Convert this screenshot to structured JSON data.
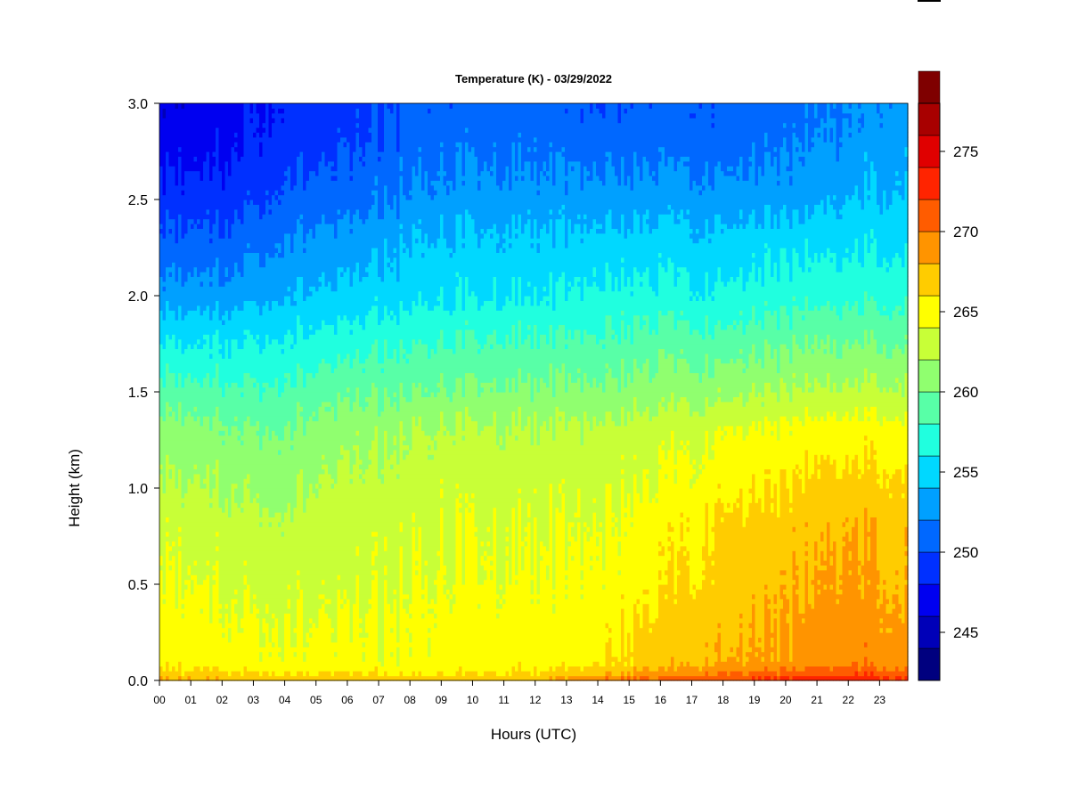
{
  "chart_data": {
    "type": "heatmap",
    "title": "Temperature (K) - 03/29/2022",
    "xlabel": "Hours (UTC)",
    "ylabel": "Height (km)",
    "x_ticks": [
      "00",
      "01",
      "02",
      "03",
      "04",
      "05",
      "06",
      "07",
      "08",
      "09",
      "10",
      "11",
      "12",
      "13",
      "14",
      "15",
      "16",
      "17",
      "18",
      "19",
      "20",
      "21",
      "22",
      "23"
    ],
    "xlim": [
      0,
      23.9
    ],
    "y_ticks": [
      "0.0",
      "0.5",
      "1.0",
      "1.5",
      "2.0",
      "2.5",
      "3.0"
    ],
    "ylim": [
      0,
      3.0
    ],
    "colorbar": {
      "ticks": [
        "245",
        "250",
        "255",
        "260",
        "265",
        "270",
        "275"
      ],
      "range": [
        242,
        278
      ],
      "step": 2,
      "colors": [
        "#00007f",
        "#0000b8",
        "#0000f0",
        "#0030ff",
        "#0068ff",
        "#00a0ff",
        "#00d8ff",
        "#20ffdf",
        "#58ffa7",
        "#90ff6f",
        "#c8ff37",
        "#ffff00",
        "#ffcc00",
        "#ff9400",
        "#ff5c00",
        "#ff2400",
        "#e00000",
        "#a80000",
        "#7f0000"
      ]
    },
    "heights_km": [
      0.0,
      0.05,
      0.1,
      0.3,
      0.5,
      0.8,
      1.0,
      1.3,
      1.5,
      1.8,
      2.0,
      2.3,
      2.5,
      2.8,
      3.0
    ],
    "profiles": [
      {
        "hour": 0,
        "temp_K": [
          268.5,
          266.5,
          265.5,
          265.0,
          264.5,
          263.5,
          262.5,
          261.0,
          259.0,
          255.5,
          253.0,
          250.5,
          249.0,
          247.0,
          246.5
        ]
      },
      {
        "hour": 2,
        "temp_K": [
          268.0,
          266.0,
          265.0,
          264.5,
          263.8,
          263.0,
          262.0,
          260.5,
          258.5,
          255.5,
          253.0,
          250.5,
          249.0,
          247.5,
          247.0
        ]
      },
      {
        "hour": 4,
        "temp_K": [
          267.5,
          265.5,
          264.5,
          264.0,
          263.5,
          262.5,
          261.5,
          260.0,
          258.5,
          256.0,
          254.0,
          252.0,
          250.5,
          249.0,
          248.5
        ]
      },
      {
        "hour": 6,
        "temp_K": [
          267.5,
          265.5,
          264.5,
          264.0,
          263.3,
          263.0,
          262.5,
          261.0,
          259.5,
          256.5,
          254.5,
          252.5,
          251.0,
          249.5,
          249.0
        ]
      },
      {
        "hour": 8,
        "temp_K": [
          267.5,
          265.5,
          264.5,
          264.5,
          264.0,
          263.5,
          263.0,
          262.0,
          260.0,
          257.5,
          255.5,
          254.0,
          252.5,
          251.0,
          250.5
        ]
      },
      {
        "hour": 10,
        "temp_K": [
          267.5,
          265.5,
          265.0,
          265.0,
          264.5,
          264.0,
          263.5,
          262.5,
          260.5,
          258.0,
          256.0,
          254.5,
          253.0,
          251.5,
          251.0
        ]
      },
      {
        "hour": 12,
        "temp_K": [
          268.0,
          266.0,
          265.0,
          265.0,
          264.5,
          264.0,
          263.5,
          262.5,
          260.5,
          258.0,
          256.0,
          254.5,
          253.0,
          251.5,
          251.0
        ]
      },
      {
        "hour": 14,
        "temp_K": [
          270.0,
          267.0,
          265.5,
          265.0,
          264.5,
          264.0,
          263.5,
          262.5,
          260.5,
          258.0,
          256.5,
          254.5,
          253.0,
          251.0,
          250.0
        ]
      },
      {
        "hour": 16,
        "temp_K": [
          271.0,
          268.0,
          267.0,
          266.5,
          265.5,
          265.0,
          264.0,
          263.0,
          261.0,
          258.5,
          256.5,
          254.5,
          253.0,
          251.0,
          250.5
        ]
      },
      {
        "hour": 18,
        "temp_K": [
          272.0,
          269.5,
          268.0,
          267.5,
          267.0,
          266.5,
          265.5,
          264.0,
          261.5,
          258.5,
          256.5,
          254.5,
          253.0,
          251.0,
          250.5
        ]
      },
      {
        "hour": 20,
        "temp_K": [
          273.0,
          270.0,
          268.5,
          268.0,
          267.5,
          267.0,
          266.0,
          264.5,
          262.0,
          259.0,
          257.0,
          255.0,
          253.0,
          251.5,
          251.0
        ]
      },
      {
        "hour": 22,
        "temp_K": [
          273.5,
          271.0,
          269.5,
          269.0,
          268.5,
          268.0,
          267.0,
          265.0,
          262.5,
          259.5,
          257.5,
          255.5,
          254.0,
          252.5,
          252.0
        ]
      },
      {
        "hour": 23.9,
        "temp_K": [
          273.0,
          270.5,
          269.0,
          268.5,
          268.0,
          267.5,
          266.5,
          265.0,
          262.5,
          259.5,
          257.5,
          255.5,
          254.5,
          253.5,
          253.0
        ]
      }
    ]
  }
}
